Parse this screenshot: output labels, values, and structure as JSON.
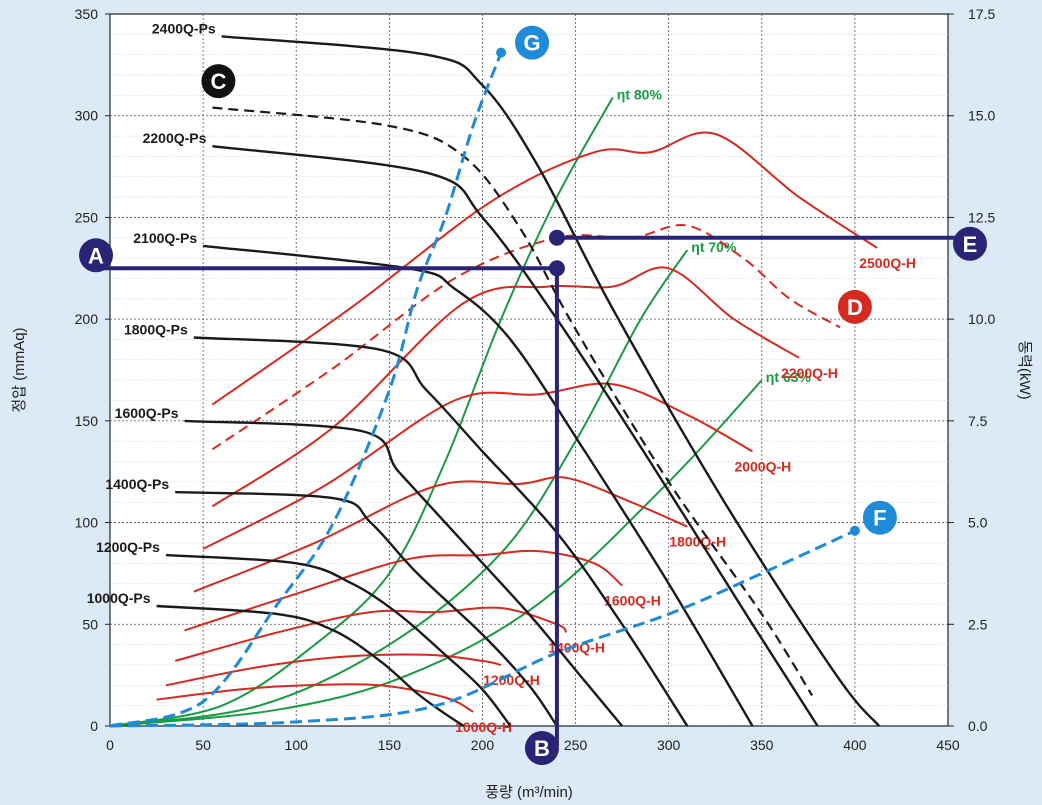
{
  "chart_data": {
    "type": "line",
    "xlabel": "풍량 (m³/min)",
    "ylabel": "정압 (mmAq)",
    "y2label": "동력(kW)",
    "xlim": [
      0,
      450
    ],
    "ylim": [
      0,
      350
    ],
    "y2lim": [
      0,
      17.5
    ],
    "grid": true,
    "x_ticks": [
      0,
      50,
      100,
      150,
      200,
      250,
      300,
      350,
      400,
      450
    ],
    "y_ticks": [
      0,
      50,
      100,
      150,
      200,
      250,
      300,
      350
    ],
    "y2_ticks": [
      "0.0",
      "2.5",
      "5.0",
      "7.5",
      "10.0",
      "12.5",
      "15.0",
      "17.5"
    ],
    "colors": {
      "ps": "#1a1a1a",
      "h": "#d52a1f",
      "eff": "#1b9a44",
      "guide": "#1f8ad6",
      "op": "#2a2477",
      "marker_red": "#d52a1f",
      "marker_blue": "#1f8ad6",
      "marker_dark": "#2a2477",
      "marker_black": "#111111",
      "background": "#dce9f6"
    },
    "ps_series": [
      {
        "name": "1000Q-Ps",
        "label": "1000Q-Ps",
        "points": [
          [
            25,
            59
          ],
          [
            90,
            55
          ],
          [
            120,
            47
          ],
          [
            145,
            32
          ],
          [
            165,
            16
          ],
          [
            180,
            6
          ],
          [
            190,
            0
          ]
        ]
      },
      {
        "name": "1200Q-Ps",
        "label": "1200Q-Ps",
        "points": [
          [
            30,
            84
          ],
          [
            100,
            80
          ],
          [
            130,
            70
          ],
          [
            155,
            55
          ],
          [
            180,
            35
          ],
          [
            200,
            18
          ],
          [
            215,
            0
          ]
        ]
      },
      {
        "name": "1400Q-Ps",
        "label": "1400Q-Ps",
        "points": [
          [
            35,
            115
          ],
          [
            120,
            112
          ],
          [
            140,
            100
          ],
          [
            165,
            75
          ],
          [
            200,
            45
          ],
          [
            225,
            20
          ],
          [
            240,
            0
          ]
        ]
      },
      {
        "name": "1600Q-Ps",
        "label": "1600Q-Ps",
        "points": [
          [
            40,
            150
          ],
          [
            135,
            145
          ],
          [
            155,
            125
          ],
          [
            185,
            95
          ],
          [
            225,
            55
          ],
          [
            255,
            22
          ],
          [
            275,
            0
          ]
        ]
      },
      {
        "name": "1800Q-Ps",
        "label": "1800Q-Ps",
        "points": [
          [
            45,
            191
          ],
          [
            145,
            185
          ],
          [
            170,
            165
          ],
          [
            200,
            135
          ],
          [
            240,
            95
          ],
          [
            275,
            50
          ],
          [
            310,
            0
          ]
        ]
      },
      {
        "name": "2100Q-Ps",
        "label": "2100Q-Ps",
        "points": [
          [
            50,
            236
          ],
          [
            160,
            225
          ],
          [
            185,
            215
          ],
          [
            215,
            190
          ],
          [
            255,
            135
          ],
          [
            300,
            70
          ],
          [
            345,
            0
          ]
        ]
      },
      {
        "name": "2200Q-Ps",
        "label": "2200Q-Ps",
        "points": [
          [
            55,
            285
          ],
          [
            170,
            272
          ],
          [
            200,
            250
          ],
          [
            240,
            200
          ],
          [
            290,
            130
          ],
          [
            345,
            50
          ],
          [
            380,
            0
          ]
        ]
      },
      {
        "name": "2400Q-Ps",
        "label": "2400Q-Ps",
        "points": [
          [
            60,
            339
          ],
          [
            170,
            330
          ],
          [
            200,
            315
          ],
          [
            230,
            275
          ],
          [
            270,
            205
          ],
          [
            330,
            110
          ],
          [
            390,
            25
          ],
          [
            413,
            0
          ]
        ]
      }
    ],
    "ps_dashed": {
      "name": "C",
      "points": [
        [
          55,
          304
        ],
        [
          150,
          295
        ],
        [
          190,
          280
        ],
        [
          220,
          245
        ],
        [
          250,
          195
        ],
        [
          300,
          120
        ],
        [
          350,
          55
        ],
        [
          377,
          15
        ]
      ]
    },
    "h_series": [
      {
        "name": "1000Q-H",
        "label": "1000Q-H",
        "points": [
          [
            25,
            13
          ],
          [
            70,
            18
          ],
          [
            105,
            20
          ],
          [
            145,
            20
          ],
          [
            180,
            14
          ],
          [
            195,
            7
          ]
        ]
      },
      {
        "name": "1200Q-H",
        "label": "1200Q-H",
        "points": [
          [
            30,
            20
          ],
          [
            80,
            29
          ],
          [
            125,
            34
          ],
          [
            170,
            35
          ],
          [
            200,
            32
          ],
          [
            210,
            30
          ]
        ]
      },
      {
        "name": "1400Q-H",
        "label": "1400Q-H",
        "points": [
          [
            35,
            32
          ],
          [
            90,
            46
          ],
          [
            140,
            56
          ],
          [
            175,
            56
          ],
          [
            210,
            58
          ],
          [
            240,
            50
          ],
          [
            245,
            46
          ]
        ]
      },
      {
        "name": "1600Q-H",
        "label": "1600Q-H",
        "points": [
          [
            40,
            47
          ],
          [
            100,
            65
          ],
          [
            160,
            82
          ],
          [
            200,
            84
          ],
          [
            230,
            86
          ],
          [
            260,
            80
          ],
          [
            275,
            69
          ]
        ]
      },
      {
        "name": "1800Q-H",
        "label": "1800Q-H",
        "points": [
          [
            45,
            66
          ],
          [
            110,
            90
          ],
          [
            175,
            118
          ],
          [
            220,
            119
          ],
          [
            245,
            122
          ],
          [
            280,
            110
          ],
          [
            310,
            98
          ]
        ]
      },
      {
        "name": "2000Q-H",
        "label": "2000Q-H",
        "points": [
          [
            50,
            87
          ],
          [
            115,
            118
          ],
          [
            185,
            160
          ],
          [
            230,
            163
          ],
          [
            270,
            168
          ],
          [
            310,
            153
          ],
          [
            345,
            135
          ]
        ]
      },
      {
        "name": "2200Q-H",
        "label": "2200Q-H",
        "points": [
          [
            55,
            108
          ],
          [
            120,
            147
          ],
          [
            190,
            208
          ],
          [
            235,
            216
          ],
          [
            270,
            216
          ],
          [
            300,
            225
          ],
          [
            335,
            200
          ],
          [
            370,
            181
          ]
        ]
      },
      {
        "name": "2500Q-H",
        "label": "2500Q-H",
        "points": [
          [
            55,
            158
          ],
          [
            130,
            206
          ],
          [
            205,
            258
          ],
          [
            260,
            282
          ],
          [
            290,
            282
          ],
          [
            325,
            291
          ],
          [
            370,
            260
          ],
          [
            412,
            235
          ]
        ]
      }
    ],
    "h_dashed": {
      "name": "D",
      "points": [
        [
          55,
          136
        ],
        [
          120,
          176
        ],
        [
          185,
          220
        ],
        [
          240,
          240
        ],
        [
          280,
          240
        ],
        [
          310,
          246
        ],
        [
          340,
          230
        ],
        [
          365,
          210
        ],
        [
          392,
          196
        ]
      ]
    },
    "eff_series": [
      {
        "name": "ηt 80%",
        "label": "ηt 80%",
        "points": [
          [
            0,
            0
          ],
          [
            60,
            10
          ],
          [
            110,
            40
          ],
          [
            150,
            75
          ],
          [
            180,
            130
          ],
          [
            210,
            200
          ],
          [
            240,
            260
          ],
          [
            270,
            309
          ]
        ]
      },
      {
        "name": "ηt 70%",
        "label": "ηt 70%",
        "points": [
          [
            0,
            0
          ],
          [
            80,
            10
          ],
          [
            150,
            40
          ],
          [
            210,
            85
          ],
          [
            250,
            140
          ],
          [
            285,
            200
          ],
          [
            310,
            234
          ]
        ]
      },
      {
        "name": "ηt 63%",
        "label": "ηt 63%",
        "points": [
          [
            0,
            0
          ],
          [
            90,
            8
          ],
          [
            160,
            25
          ],
          [
            230,
            60
          ],
          [
            300,
            120
          ],
          [
            350,
            170
          ]
        ]
      }
    ],
    "guides": [
      {
        "name": "G",
        "label": "G",
        "points": [
          [
            0,
            0
          ],
          [
            50,
            12
          ],
          [
            90,
            60
          ],
          [
            120,
            100
          ],
          [
            150,
            165
          ],
          [
            165,
            215
          ],
          [
            180,
            250
          ],
          [
            195,
            295
          ],
          [
            210,
            331
          ]
        ]
      },
      {
        "name": "F",
        "label": "F",
        "points": [
          [
            0,
            0
          ],
          [
            100,
            2
          ],
          [
            175,
            10
          ],
          [
            240,
            36
          ],
          [
            300,
            55
          ],
          [
            350,
            75
          ],
          [
            400,
            96
          ]
        ]
      }
    ],
    "operating": {
      "A": {
        "label": "A",
        "pressure": 225
      },
      "B": {
        "label": "B",
        "flow": 240
      },
      "E": {
        "label": "E",
        "pressure": 240
      }
    },
    "annotations": [
      {
        "label": "C",
        "x": 55,
        "y": 316
      },
      {
        "label": "D",
        "x": 400,
        "y": 207
      }
    ]
  }
}
